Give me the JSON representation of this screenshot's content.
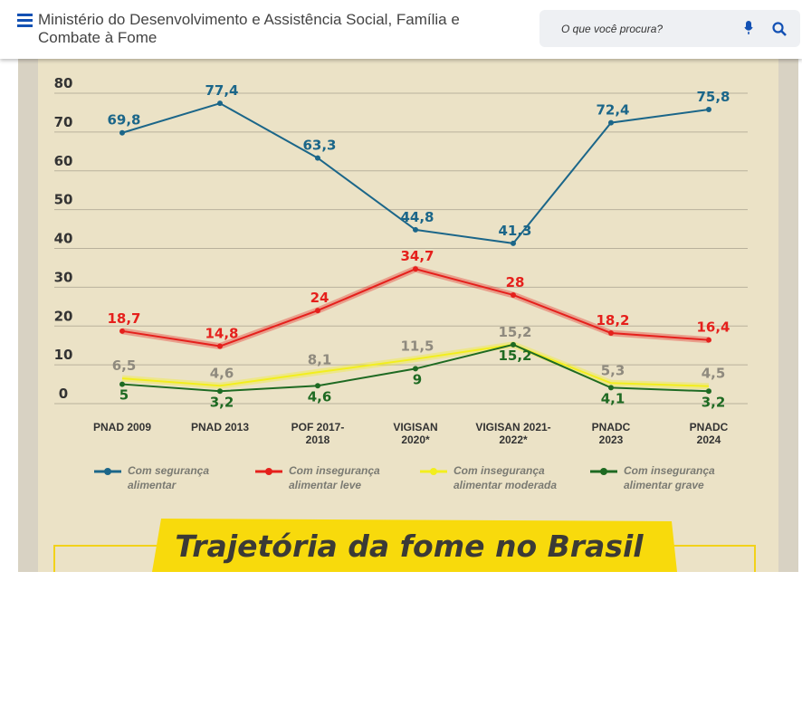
{
  "header": {
    "title": "Ministério do Desenvolvimento e Assistência Social, Família e Combate à Fome",
    "search_placeholder": "O que você procura?"
  },
  "chart_data": {
    "type": "line",
    "title": "Trajetória da fome no Brasil",
    "categories": [
      "PNAD 2009",
      "PNAD 2013",
      "POF 2017-2018",
      "VIGISAN 2020*",
      "VIGISAN 2021-2022*",
      "PNADC 2023",
      "PNADC 2024"
    ],
    "ylim": [
      0,
      88
    ],
    "yticks": [
      0,
      10,
      20,
      30,
      40,
      50,
      60,
      70,
      80
    ],
    "grid": true,
    "series": [
      {
        "name": "Com segurança alimentar",
        "color": "#1b6689",
        "values": [
          69.8,
          77.4,
          63.3,
          44.8,
          41.3,
          72.4,
          75.8
        ],
        "value_labels": [
          "69,8",
          "77,4",
          "63,3",
          "44,8",
          "41,3",
          "72,4",
          "75,8"
        ]
      },
      {
        "name": "Com insegurança alimentar leve",
        "color": "#e5201c",
        "values": [
          18.7,
          14.8,
          24,
          34.7,
          28,
          18.2,
          16.4
        ],
        "value_labels": [
          "18,7",
          "14,8",
          "24",
          "34,7",
          "28",
          "18,2",
          "16,4"
        ]
      },
      {
        "name": "Com insegurança alimentar moderada",
        "color": "#f2ee1e",
        "values": [
          6.5,
          4.6,
          8.1,
          11.5,
          15.2,
          5.3,
          4.5
        ],
        "value_labels": [
          "6,5",
          "4,6",
          "8,1",
          "11,5",
          "15,2",
          "5,3",
          "4,5"
        ]
      },
      {
        "name": "Com insegurança alimentar grave",
        "color": "#1e6a22",
        "values": [
          5,
          3.2,
          4.6,
          9,
          15.2,
          4.1,
          3.2
        ],
        "value_labels": [
          "5",
          "3,2",
          "4,6",
          "9",
          "15,2",
          "4,1",
          "3,2"
        ]
      }
    ]
  }
}
